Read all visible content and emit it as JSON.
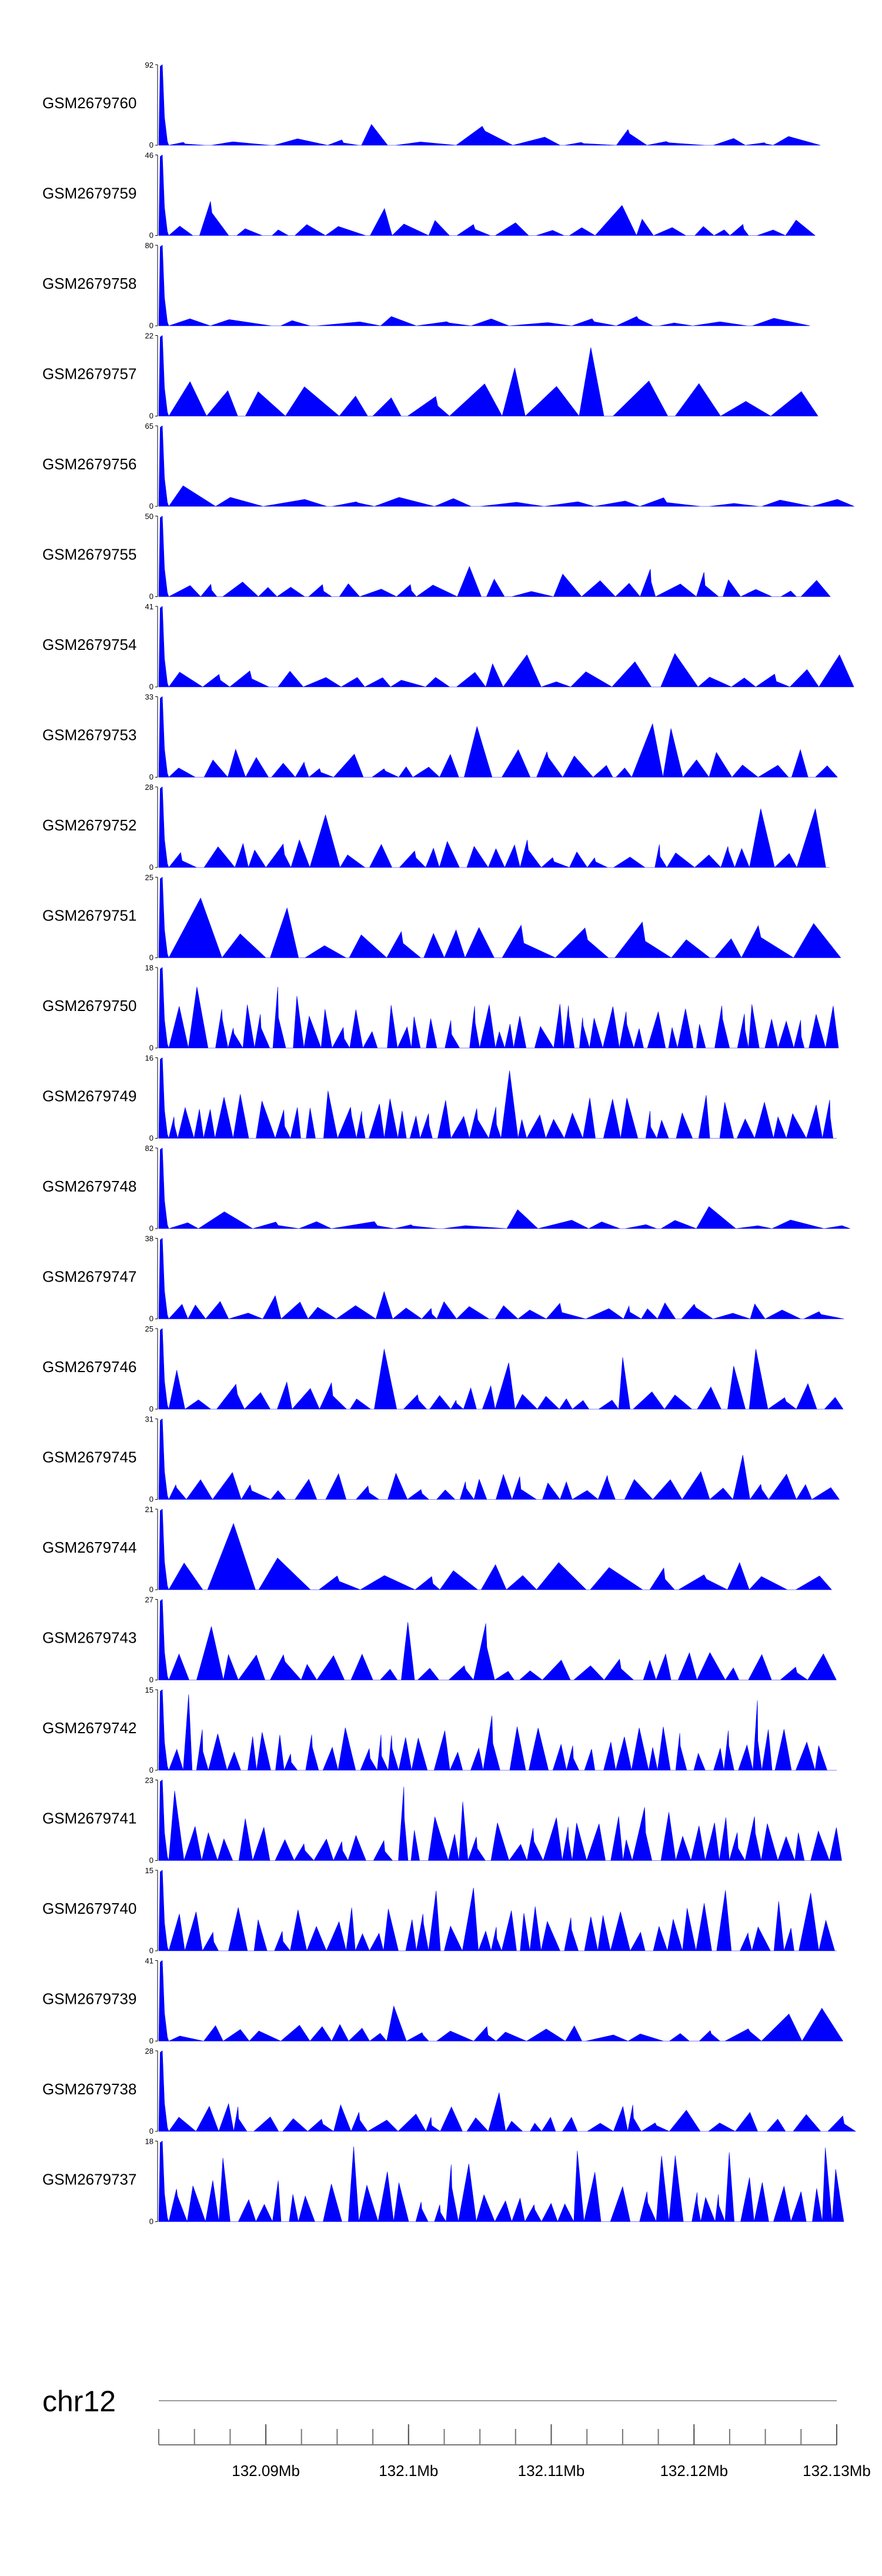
{
  "chart_data": {
    "type": "area",
    "chromosome": "chr12",
    "xlim": [
      132.0825,
      132.13
    ],
    "x_ticks": [
      {
        "value": 132.09,
        "label": "132.09Mb"
      },
      {
        "value": 132.1,
        "label": "132.1Mb"
      },
      {
        "value": 132.11,
        "label": "132.11Mb"
      },
      {
        "value": 132.12,
        "label": "132.12Mb"
      },
      {
        "value": 132.13,
        "label": "132.13Mb"
      }
    ],
    "color": "#0000ff",
    "tracks": [
      {
        "name": "GSM2679760",
        "ymax": 92,
        "ymin_label": "0",
        "ymax_label": "92",
        "end": 132.1265,
        "pattern": "sparse-low"
      },
      {
        "name": "GSM2679759",
        "ymax": 46,
        "ymin_label": "0",
        "ymax_label": "46",
        "end": 132.127,
        "pattern": "sparse-mid"
      },
      {
        "name": "GSM2679758",
        "ymax": 80,
        "ymin_label": "0",
        "ymax_label": "80",
        "end": 132.127,
        "pattern": "sparse-low"
      },
      {
        "name": "GSM2679757",
        "ymax": 22,
        "ymin_label": "0",
        "ymax_label": "22",
        "end": 132.128,
        "pattern": "big-triangles"
      },
      {
        "name": "GSM2679756",
        "ymax": 65,
        "ymin_label": "0",
        "ymax_label": "65",
        "end": 132.13,
        "pattern": "sparse-low"
      },
      {
        "name": "GSM2679755",
        "ymax": 50,
        "ymin_label": "0",
        "ymax_label": "50",
        "end": 132.1295,
        "pattern": "sparse-mid"
      },
      {
        "name": "GSM2679754",
        "ymax": 41,
        "ymin_label": "0",
        "ymax_label": "41",
        "end": 132.13,
        "pattern": "sparse-mid"
      },
      {
        "name": "GSM2679753",
        "ymax": 33,
        "ymin_label": "0",
        "ymax_label": "33",
        "end": 132.13,
        "pattern": "medium"
      },
      {
        "name": "GSM2679752",
        "ymax": 28,
        "ymin_label": "0",
        "ymax_label": "28",
        "end": 132.1295,
        "pattern": "medium"
      },
      {
        "name": "GSM2679751",
        "ymax": 25,
        "ymin_label": "0",
        "ymax_label": "25",
        "end": 132.13,
        "pattern": "big-triangles"
      },
      {
        "name": "GSM2679750",
        "ymax": 18,
        "ymin_label": "0",
        "ymax_label": "18",
        "end": 132.13,
        "pattern": "dense"
      },
      {
        "name": "GSM2679749",
        "ymax": 16,
        "ymin_label": "0",
        "ymax_label": "16",
        "end": 132.13,
        "pattern": "dense"
      },
      {
        "name": "GSM2679748",
        "ymax": 82,
        "ymin_label": "0",
        "ymax_label": "82",
        "end": 132.1295,
        "pattern": "sparse-low"
      },
      {
        "name": "GSM2679747",
        "ymax": 38,
        "ymin_label": "0",
        "ymax_label": "38",
        "end": 132.13,
        "pattern": "sparse-mid"
      },
      {
        "name": "GSM2679746",
        "ymax": 25,
        "ymin_label": "0",
        "ymax_label": "25",
        "end": 132.13,
        "pattern": "medium"
      },
      {
        "name": "GSM2679745",
        "ymax": 31,
        "ymin_label": "0",
        "ymax_label": "31",
        "end": 132.1295,
        "pattern": "medium"
      },
      {
        "name": "GSM2679744",
        "ymax": 21,
        "ymin_label": "0",
        "ymax_label": "21",
        "end": 132.1285,
        "pattern": "big-triangles"
      },
      {
        "name": "GSM2679743",
        "ymax": 27,
        "ymin_label": "0",
        "ymax_label": "27",
        "end": 132.1295,
        "pattern": "medium"
      },
      {
        "name": "GSM2679742",
        "ymax": 15,
        "ymin_label": "0",
        "ymax_label": "15",
        "end": 132.13,
        "pattern": "dense"
      },
      {
        "name": "GSM2679741",
        "ymax": 23,
        "ymin_label": "0",
        "ymax_label": "23",
        "end": 132.13,
        "pattern": "dense"
      },
      {
        "name": "GSM2679740",
        "ymax": 15,
        "ymin_label": "0",
        "ymax_label": "15",
        "end": 132.13,
        "pattern": "dense"
      },
      {
        "name": "GSM2679739",
        "ymax": 41,
        "ymin_label": "0",
        "ymax_label": "41",
        "end": 132.1295,
        "pattern": "sparse-mid"
      },
      {
        "name": "GSM2679738",
        "ymax": 28,
        "ymin_label": "0",
        "ymax_label": "28",
        "end": 132.13,
        "pattern": "medium"
      },
      {
        "name": "GSM2679737",
        "ymax": 18,
        "ymin_label": "0",
        "ymax_label": "18",
        "end": 132.13,
        "pattern": "dense"
      }
    ]
  }
}
